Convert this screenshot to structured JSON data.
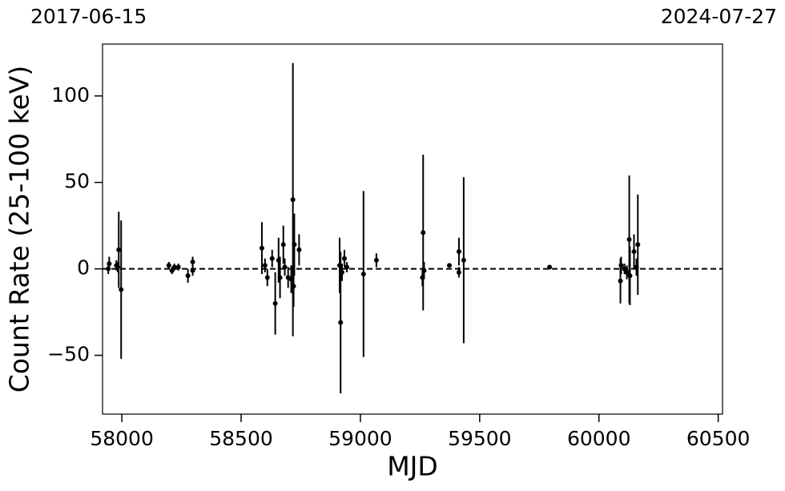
{
  "chart_data": {
    "type": "errorbar",
    "x_label": "MJD",
    "y_label": "Count Rate (25-100 keV)",
    "annotations": [
      "2017-06-15",
      "2024-07-27"
    ],
    "xlim": [
      57919,
      60518
    ],
    "ylim": [
      -84,
      130
    ],
    "xticks": [
      58000,
      58500,
      59000,
      59500,
      60000,
      60500
    ],
    "yticks": [
      {
        "value": -50,
        "label": "−50"
      },
      0,
      50,
      100
    ],
    "reference_line": 0,
    "color": "#000000",
    "x": [
      57943,
      57947,
      57977,
      57983,
      57987,
      57997,
      58197,
      58210,
      58220,
      58237,
      58277,
      58297,
      58297,
      58587,
      58600,
      58610,
      58630,
      58643,
      58657,
      58663,
      58677,
      58683,
      58697,
      58710,
      58717,
      58720,
      58723,
      58743,
      58917,
      58913,
      58923,
      58933,
      58943,
      59013,
      59067,
      59260,
      59263,
      59267,
      59373,
      59413,
      59413,
      59433,
      59793,
      60090,
      60093,
      60107,
      60117,
      60127,
      60130,
      60147,
      60157,
      60163
    ],
    "values": [
      0,
      3,
      2,
      1,
      11,
      -12,
      2,
      -1,
      1,
      1,
      -4,
      4,
      -1,
      12,
      2,
      -5,
      6,
      -20,
      5,
      -5,
      14,
      1,
      -5,
      -6,
      40,
      -10,
      14,
      11,
      -31,
      2,
      -2,
      6,
      1,
      -3,
      5,
      -5,
      21,
      -1,
      2,
      10,
      -2,
      5,
      1,
      -7,
      2,
      0,
      -2,
      17,
      -4,
      10,
      1,
      14
    ],
    "errors": [
      3,
      4,
      3,
      3,
      22,
      40,
      2,
      2,
      2,
      2,
      4,
      3,
      3,
      15,
      4,
      5,
      5,
      18,
      13,
      12,
      11,
      5,
      6,
      8,
      79,
      12,
      18,
      9,
      41,
      16,
      5,
      5,
      3,
      48,
      4,
      5,
      45,
      5,
      1,
      8,
      3,
      48,
      1,
      13,
      5,
      3,
      4,
      37,
      17,
      10,
      5,
      29
    ]
  }
}
